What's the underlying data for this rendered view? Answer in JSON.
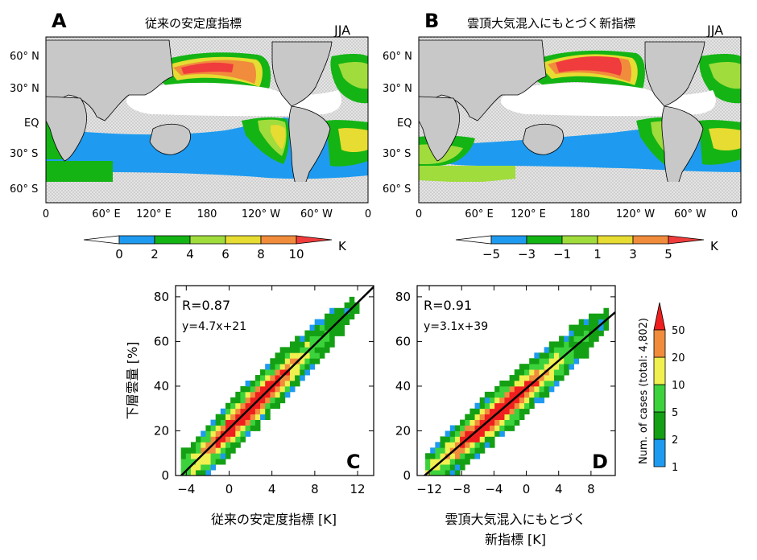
{
  "maps": [
    {
      "letter": "A",
      "title": "従来の安定度指標",
      "season": "JJA",
      "colorbar": {
        "ticks": [
          "0",
          "2",
          "4",
          "6",
          "8",
          "10"
        ],
        "unit": "K",
        "colors": [
          "#1e9bf0",
          "#14b414",
          "#a0dc3c",
          "#e6dc32",
          "#f08c3c",
          "#f03c3c"
        ]
      }
    },
    {
      "letter": "B",
      "title": "雲頂大気混入にもとづく新指標",
      "season": "JJA",
      "colorbar": {
        "ticks": [
          "−5",
          "−3",
          "−1",
          "1",
          "3",
          "5"
        ],
        "unit": "K",
        "colors": [
          "#1e9bf0",
          "#14b414",
          "#a0dc3c",
          "#e6dc32",
          "#f08c3c",
          "#f03c3c"
        ]
      }
    }
  ],
  "map_axes": {
    "lat_ticks": [
      "60° N",
      "30° N",
      "EQ",
      "30° S",
      "60° S"
    ],
    "lon_ticks": [
      "0",
      "60° E",
      "120° E",
      "180",
      "120° W",
      "60° W",
      "0"
    ]
  },
  "chart_data": [
    {
      "type": "heatmap",
      "panel": "C",
      "xlabel": "従来の安定度指標 [K]",
      "ylabel": "下層雲量 [%]",
      "xlim": [
        -5,
        13.5
      ],
      "ylim": [
        0,
        85
      ],
      "xticks": [
        "−4",
        "0",
        "4",
        "8",
        "12"
      ],
      "yticks": [
        "0",
        "20",
        "40",
        "60",
        "80"
      ],
      "stat_label": "R=0.87",
      "fit_label": "y=4.7x+21",
      "fit": {
        "slope": 4.7,
        "intercept": 21
      },
      "center_x": 1.77,
      "spread_x": 0.9,
      "y_noise": 7,
      "x_span": [
        -4.5,
        12
      ]
    },
    {
      "type": "heatmap",
      "panel": "D",
      "xlabel_line1": "雲頂大気混入にもとづく",
      "xlabel_line2": "新指標 [K]",
      "xlim": [
        -13.5,
        11
      ],
      "ylim": [
        0,
        85
      ],
      "xticks": [
        "−12",
        "−8",
        "−4",
        "0",
        "4",
        "8"
      ],
      "yticks": [
        "0",
        "20",
        "40",
        "60",
        "80"
      ],
      "stat_label": "R=0.91",
      "fit_label": "y=3.1x+39",
      "fit": {
        "slope": 3.1,
        "intercept": 39
      },
      "center_x": -3.5,
      "spread_x": 1.3,
      "y_noise": 7,
      "x_span": [
        -12.5,
        10
      ]
    }
  ],
  "colorbar_counts": {
    "title": "Num. of cases (total: 4,802)",
    "ticks": [
      "1",
      "2",
      "5",
      "10",
      "20",
      "50"
    ],
    "colors": [
      "#1e9bf0",
      "#14a014",
      "#3cd23c",
      "#f0f050",
      "#f08c3c",
      "#f01e1e"
    ]
  }
}
